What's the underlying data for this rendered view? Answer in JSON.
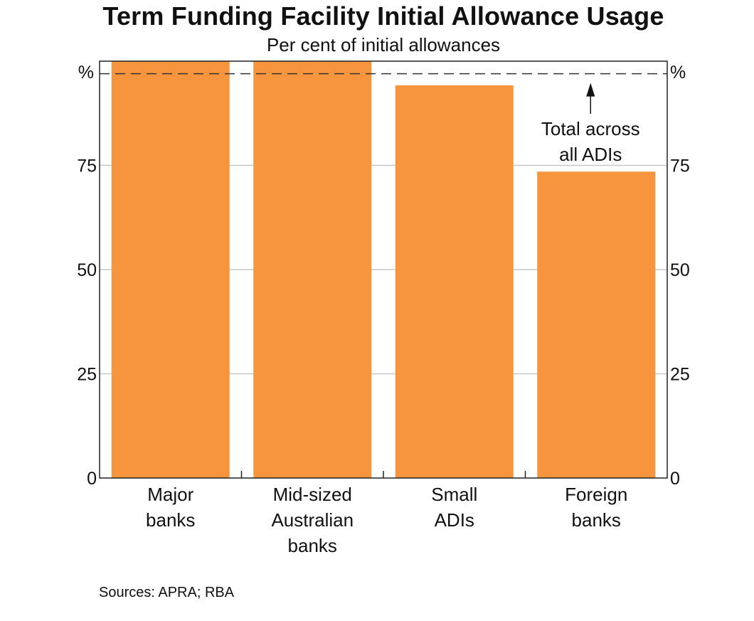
{
  "chart_data": {
    "type": "bar",
    "title": "Term Funding Facility Initial Allowance Usage",
    "subtitle": "Per cent of initial allowances",
    "unit_left": "%",
    "unit_right": "%",
    "categories": [
      [
        "Major",
        "banks"
      ],
      [
        "Mid-sized",
        "Australian",
        "banks"
      ],
      [
        "Small",
        "ADIs"
      ],
      [
        "Foreign",
        "banks"
      ]
    ],
    "values": [
      100,
      100,
      94.2,
      73.5
    ],
    "ylim": [
      0,
      100
    ],
    "yticks": [
      0,
      25,
      50,
      75
    ],
    "reference_line": {
      "value": 97,
      "style": "dashed"
    },
    "annotation": [
      "Total across",
      "all ADIs"
    ],
    "bar_color": "#f7953f",
    "grid": true,
    "source": "Sources: APRA; RBA"
  }
}
